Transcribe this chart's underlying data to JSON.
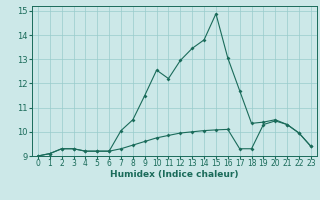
{
  "xlabel": "Humidex (Indice chaleur)",
  "ylabel": "",
  "background_color": "#cce8e8",
  "grid_color": "#99cccc",
  "line_color": "#1a6b5a",
  "xlim": [
    -0.5,
    23.5
  ],
  "ylim": [
    9,
    15.2
  ],
  "yticks": [
    9,
    10,
    11,
    12,
    13,
    14,
    15
  ],
  "xticks": [
    0,
    1,
    2,
    3,
    4,
    5,
    6,
    7,
    8,
    9,
    10,
    11,
    12,
    13,
    14,
    15,
    16,
    17,
    18,
    19,
    20,
    21,
    22,
    23
  ],
  "series1_x": [
    0,
    1,
    2,
    3,
    4,
    5,
    6,
    7,
    8,
    9,
    10,
    11,
    12,
    13,
    14,
    15,
    16,
    17,
    18,
    19,
    20,
    21,
    22,
    23
  ],
  "series1_y": [
    9.0,
    9.1,
    9.3,
    9.3,
    9.2,
    9.2,
    9.2,
    9.3,
    9.45,
    9.6,
    9.75,
    9.85,
    9.95,
    10.0,
    10.05,
    10.08,
    10.1,
    9.3,
    9.3,
    10.3,
    10.45,
    10.3,
    9.95,
    9.4
  ],
  "series2_x": [
    0,
    1,
    2,
    3,
    4,
    5,
    6,
    7,
    8,
    9,
    10,
    11,
    12,
    13,
    14,
    15,
    16,
    17,
    18,
    19,
    20,
    21,
    22,
    23
  ],
  "series2_y": [
    9.0,
    9.1,
    9.3,
    9.3,
    9.2,
    9.2,
    9.2,
    10.05,
    10.5,
    11.5,
    12.55,
    12.2,
    12.95,
    13.45,
    13.8,
    14.88,
    13.05,
    11.7,
    10.35,
    10.4,
    10.5,
    10.3,
    9.95,
    9.4
  ],
  "xlabel_fontsize": 6.5,
  "ylabel_fontsize": 6.5,
  "tick_fontsize": 5.5,
  "line_width": 0.8,
  "marker_size": 2.0
}
